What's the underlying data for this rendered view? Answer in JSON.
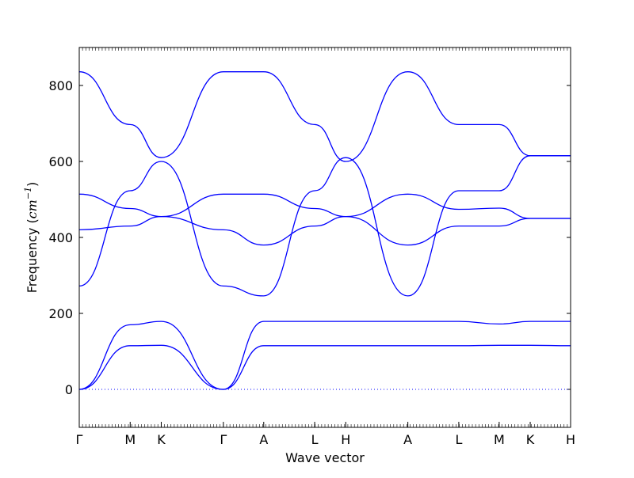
{
  "chart_data": {
    "type": "line",
    "title": "",
    "xlabel": "Wave vector",
    "ylabel": {
      "prefix": "Frequency (",
      "unit": "cm",
      "exponent": "−1",
      "suffix": ")"
    },
    "ylim": [
      -100,
      900
    ],
    "yticks": [
      0,
      200,
      400,
      600,
      800
    ],
    "grid": false,
    "legend": "none",
    "line_color": "#0000ff",
    "zero_line": {
      "y": 0,
      "style": "dotted",
      "color": "#0000ff"
    },
    "high_symmetry_points": [
      {
        "label": "Γ",
        "k": 0.0
      },
      {
        "label": "M",
        "k": 0.82
      },
      {
        "label": "K",
        "k": 1.32
      },
      {
        "label": "Γ",
        "k": 2.32
      },
      {
        "label": "A",
        "k": 2.97
      },
      {
        "label": "L",
        "k": 3.79
      },
      {
        "label": "H",
        "k": 4.29
      },
      {
        "label": "A",
        "k": 5.29
      },
      {
        "label": "L",
        "k": 6.11
      },
      {
        "label": "M",
        "k": 6.76
      },
      {
        "label": "K",
        "k": 7.26
      },
      {
        "label": "H",
        "k": 7.91
      }
    ],
    "series": [
      {
        "values": [
          0,
          115,
          116,
          0,
          115,
          115,
          115,
          115,
          115,
          116,
          116,
          115
        ]
      },
      {
        "values": [
          0,
          170,
          179,
          0,
          179,
          179,
          179,
          179,
          179,
          172,
          179,
          179
        ]
      },
      {
        "values": [
          272,
          523,
          600,
          272,
          246,
          523,
          610,
          246,
          523,
          523,
          615,
          615
        ]
      },
      {
        "values": [
          420,
          430,
          455,
          420,
          380,
          430,
          455,
          380,
          430,
          430,
          450,
          450
        ]
      },
      {
        "values": [
          514,
          476,
          455,
          514,
          514,
          476,
          455,
          514,
          474,
          477,
          450,
          450
        ]
      },
      {
        "values": [
          836,
          697,
          610,
          836,
          836,
          697,
          600,
          836,
          697,
          697,
          615,
          615
        ]
      }
    ]
  }
}
